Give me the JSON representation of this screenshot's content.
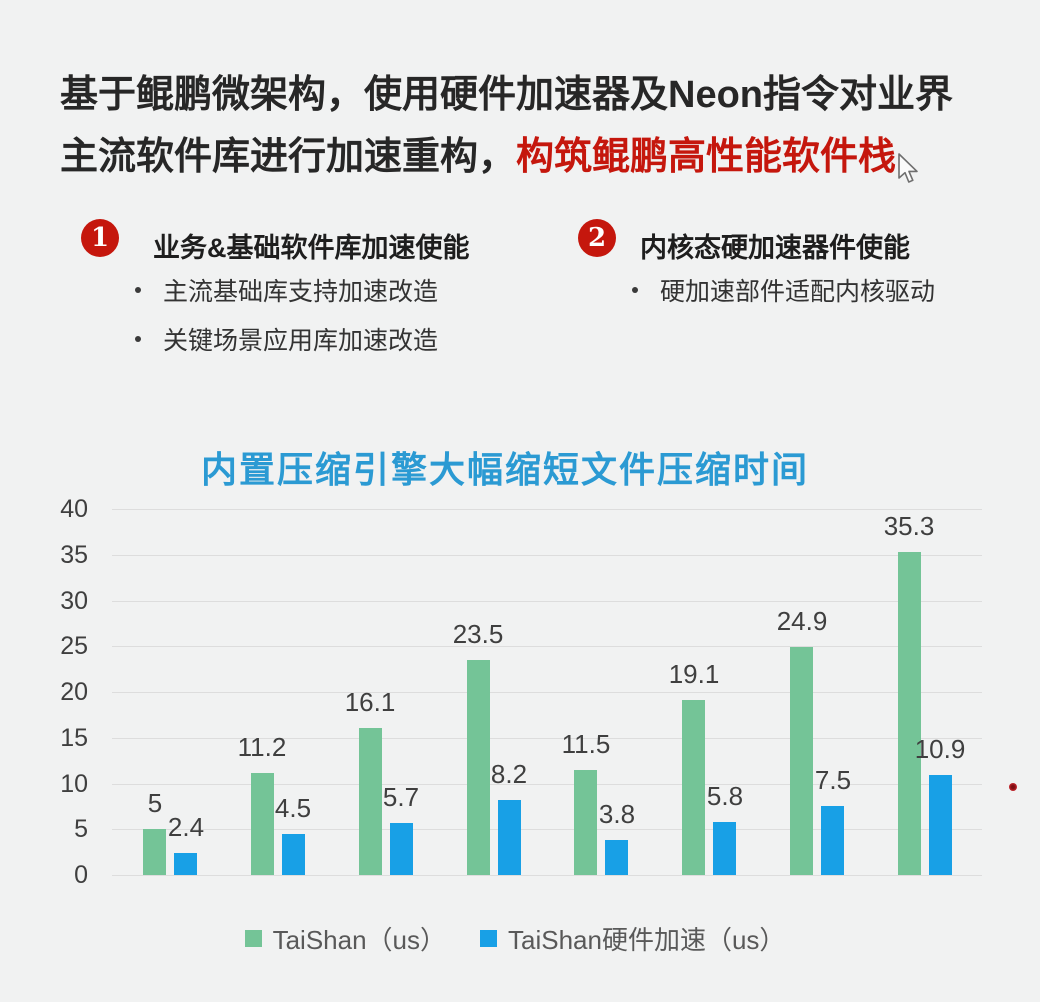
{
  "header": {
    "line1": "基于鲲鹏微架构，使用硬件加速器及Neon指令对业界",
    "line2_prefix": "主流软件库进行加速重构，",
    "line2_highlight": "构筑鲲鹏高性能软件栈"
  },
  "sections": [
    {
      "number": "1",
      "title": "业务&基础软件库加速使能",
      "bullets": [
        "主流基础库支持加速改造",
        "关键场景应用库加速改造"
      ]
    },
    {
      "number": "2",
      "title": "内核态硬加速器件使能",
      "bullets": [
        "硬加速部件适配内核驱动"
      ]
    }
  ],
  "chart_data": {
    "type": "bar",
    "title": "内置压缩引擎大幅缩短文件压缩时间",
    "categories": [
      "",
      "",
      "",
      "",
      "",
      "",
      "",
      ""
    ],
    "series": [
      {
        "name": "TaiShan（us）",
        "color": "#74c497",
        "values": [
          5,
          11.2,
          16.1,
          23.5,
          11.5,
          19.1,
          24.9,
          35.3
        ],
        "labels": [
          "5",
          "11.2",
          "16.1",
          "23.5",
          "11.5",
          "19.1",
          "24.9",
          "35.3"
        ]
      },
      {
        "name": "TaiShan硬件加速（us）",
        "color": "#18a0e6",
        "values": [
          2.4,
          4.5,
          5.7,
          8.2,
          3.8,
          5.8,
          7.5,
          10.9
        ],
        "labels": [
          "2.4",
          "4.5",
          "5.7",
          "8.2",
          "3.8",
          "5.8",
          "7.5",
          "10.9"
        ]
      }
    ],
    "yticks": [
      0,
      5,
      10,
      15,
      20,
      25,
      30,
      35,
      40
    ],
    "ylim": [
      0,
      40
    ],
    "grid": true,
    "legend_position": "bottom",
    "xlabel": "",
    "ylabel": ""
  },
  "colors": {
    "accent_red": "#c5170d",
    "chart_title_blue": "#2b9ad3",
    "background": "#f1f2f2"
  },
  "icons": {
    "cursor": "mouse-pointer-arrow",
    "laser_dot": "red-laser-dot"
  }
}
